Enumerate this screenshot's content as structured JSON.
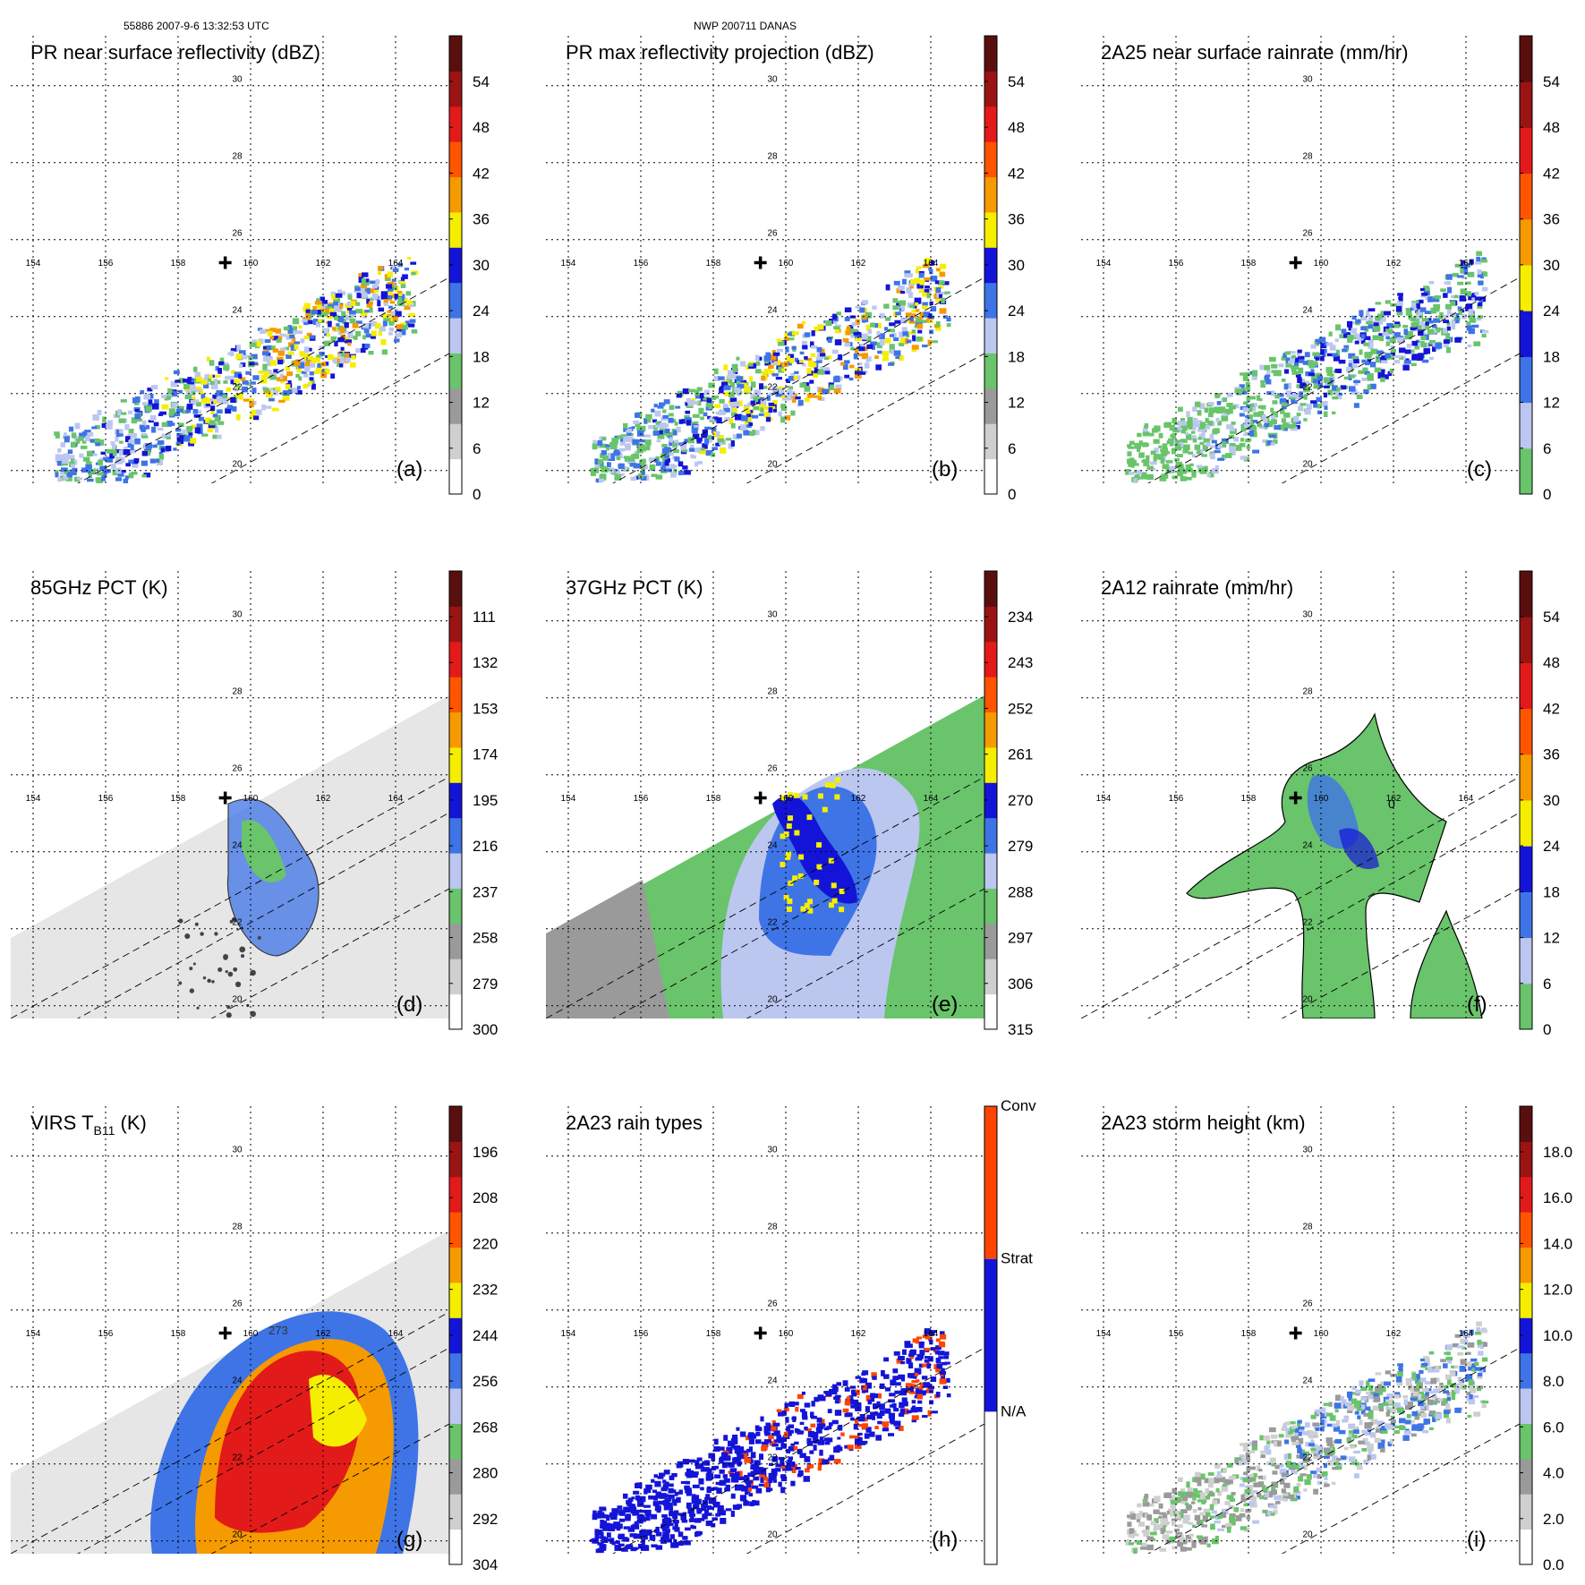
{
  "header": {
    "left": "55886 2007-9-6 13:32:53 UTC",
    "center": "NWP 200711 DANAS"
  },
  "map": {
    "lon_labels": [
      "154",
      "156",
      "158",
      "160",
      "162",
      "164"
    ],
    "lat_labels": [
      "20",
      "22",
      "24",
      "26",
      "28",
      "30"
    ],
    "center_marker": {
      "lon": 159.3,
      "lat": 25.4
    }
  },
  "chart_data": [
    {
      "type": "heatmap",
      "panel": "(a)",
      "title": "PR near surface reflectivity (dBZ)",
      "colorbar_ticks": [
        "0",
        "6",
        "12",
        "18",
        "24",
        "30",
        "36",
        "42",
        "48",
        "54"
      ],
      "colorbar_colors": [
        "#ffffff",
        "#cfcfcf",
        "#9a9a9a",
        "#69c46b",
        "#bcc7f0",
        "#3e74e6",
        "#1414d8",
        "#f5ee00",
        "#f59a00",
        "#ff5500",
        "#e31a1a",
        "#9b1414",
        "#5a0f0f"
      ],
      "colorbar_split": 7,
      "style": "swath"
    },
    {
      "type": "heatmap",
      "panel": "(b)",
      "title": "PR max reflectivity projection (dBZ)",
      "colorbar_ticks": [
        "0",
        "6",
        "12",
        "18",
        "24",
        "30",
        "36",
        "42",
        "48",
        "54"
      ],
      "colorbar_colors": [
        "#ffffff",
        "#cfcfcf",
        "#9a9a9a",
        "#69c46b",
        "#bcc7f0",
        "#3e74e6",
        "#1414d8",
        "#f5ee00",
        "#f59a00",
        "#ff5500",
        "#e31a1a",
        "#9b1414",
        "#5a0f0f"
      ],
      "colorbar_split": 7,
      "style": "swath"
    },
    {
      "type": "heatmap",
      "panel": "(c)",
      "title": "2A25 near surface rainrate (mm/hr)",
      "colorbar_ticks": [
        "0",
        "6",
        "12",
        "18",
        "24",
        "30",
        "36",
        "42",
        "48",
        "54"
      ],
      "colorbar_colors": [
        "#69c46b",
        "#bcc7f0",
        "#3e74e6",
        "#1414d8",
        "#f5ee00",
        "#f59a00",
        "#ff5500",
        "#e31a1a",
        "#9b1414",
        "#5a0f0f"
      ],
      "colorbar_split": 4,
      "style": "swath"
    },
    {
      "type": "heatmap",
      "panel": "(d)",
      "title": "85GHz PCT (K)",
      "colorbar_ticks": [
        "300",
        "279",
        "258",
        "237",
        "216",
        "195",
        "174",
        "153",
        "132",
        "111"
      ],
      "colorbar_colors": [
        "#ffffff",
        "#cfcfcf",
        "#9a9a9a",
        "#69c46b",
        "#bcc7f0",
        "#3e74e6",
        "#1414d8",
        "#f5ee00",
        "#f59a00",
        "#ff5500",
        "#e31a1a",
        "#9b1414",
        "#5a0f0f"
      ],
      "colorbar_split": 7,
      "style": "wide-gray"
    },
    {
      "type": "heatmap",
      "panel": "(e)",
      "title": "37GHz PCT (K)",
      "colorbar_ticks": [
        "315",
        "306",
        "297",
        "288",
        "279",
        "270",
        "261",
        "252",
        "243",
        "234"
      ],
      "colorbar_colors": [
        "#ffffff",
        "#cfcfcf",
        "#9a9a9a",
        "#69c46b",
        "#bcc7f0",
        "#3e74e6",
        "#1414d8",
        "#f5ee00",
        "#f59a00",
        "#ff5500",
        "#e31a1a",
        "#9b1414",
        "#5a0f0f"
      ],
      "colorbar_split": 7,
      "style": "wide-green"
    },
    {
      "type": "heatmap",
      "panel": "(f)",
      "title": "2A12 rainrate (mm/hr)",
      "colorbar_ticks": [
        "0",
        "6",
        "12",
        "18",
        "24",
        "30",
        "36",
        "42",
        "48",
        "54"
      ],
      "colorbar_colors": [
        "#69c46b",
        "#bcc7f0",
        "#3e74e6",
        "#1414d8",
        "#f5ee00",
        "#f59a00",
        "#ff5500",
        "#e31a1a",
        "#9b1414",
        "#5a0f0f"
      ],
      "colorbar_split": 4,
      "style": "rain-blob",
      "contour_label": "0"
    },
    {
      "type": "heatmap",
      "panel": "(g)",
      "title": "VIRS T",
      "title_sub": "B11",
      "title_suffix": " (K)",
      "colorbar_ticks": [
        "304",
        "292",
        "280",
        "268",
        "256",
        "244",
        "232",
        "220",
        "208",
        "196"
      ],
      "colorbar_colors": [
        "#ffffff",
        "#cfcfcf",
        "#9a9a9a",
        "#69c46b",
        "#bcc7f0",
        "#3e74e6",
        "#1414d8",
        "#f5ee00",
        "#f59a00",
        "#ff5500",
        "#e31a1a",
        "#9b1414",
        "#5a0f0f"
      ],
      "colorbar_split": 7,
      "style": "ir",
      "contour_label": "273"
    },
    {
      "type": "heatmap",
      "panel": "(h)",
      "title": "2A23 rain types",
      "colorbar_ticks": [
        "N/A",
        "Strat",
        "Conv"
      ],
      "colorbar_colors": [
        "#ffffff",
        "#1414d8",
        "#ff4500"
      ],
      "style": "raintype"
    },
    {
      "type": "heatmap",
      "panel": "(i)",
      "title": "2A23 storm height (km)",
      "colorbar_ticks": [
        "0.0",
        "2.0",
        "4.0",
        "6.0",
        "8.0",
        "10.0",
        "12.0",
        "14.0",
        "16.0",
        "18.0"
      ],
      "colorbar_colors": [
        "#ffffff",
        "#cfcfcf",
        "#9a9a9a",
        "#69c46b",
        "#bcc7f0",
        "#3e74e6",
        "#1414d8",
        "#f5ee00",
        "#f59a00",
        "#ff5500",
        "#e31a1a",
        "#9b1414",
        "#5a0f0f"
      ],
      "colorbar_split": 7,
      "style": "height"
    }
  ]
}
